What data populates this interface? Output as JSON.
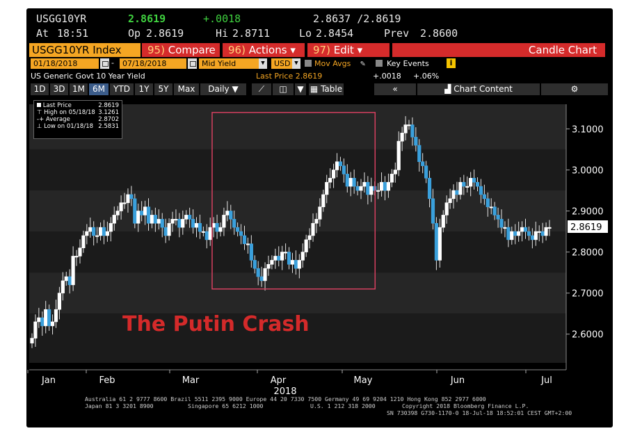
{
  "header": {
    "ticker": "USGG10YR",
    "last": "2.8619",
    "change": "+.0018",
    "bid_ask": "2.8637 /2.8619",
    "time_label": "At",
    "time": "18:51",
    "open_label": "Op",
    "open": "2.8619",
    "high_label": "Hi",
    "high": "2.8711",
    "low_label": "Lo",
    "low": "2.8454",
    "prev_label": "Prev",
    "prev": "2.8600"
  },
  "toolbar": {
    "security": "USGG10YR Index",
    "compare_key": "95)",
    "compare": "Compare",
    "actions_key": "96)",
    "actions": "Actions",
    "edit_key": "97)",
    "edit": "Edit",
    "chart_type": "Candle Chart"
  },
  "settings": {
    "start_date": "01/18/2018",
    "end_date": "07/18/2018",
    "field": "Mid Yield",
    "currency": "USD",
    "mov_avgs": "Mov Avgs",
    "key_events": "Key Events",
    "info": "i"
  },
  "subtitle": {
    "security_name": "US Generic Govt 10 Year Yield",
    "last_price": "Last Price 2.8619",
    "change": "+.0018",
    "pct_change": "+.06%"
  },
  "periods": {
    "items": [
      "1D",
      "3D",
      "1M",
      "6M",
      "YTD",
      "1Y",
      "5Y",
      "Max"
    ],
    "active": "6M",
    "frequency": "Daily",
    "table": "Table",
    "collapse": "«",
    "chart_content": "Chart Content",
    "settings_icon": "gear-icon"
  },
  "legend": {
    "last_price_label": "Last Price",
    "last_price": "2.8619",
    "high_label": "High on 05/18/18",
    "high": "3.1261",
    "average_label": "Average",
    "average": "2.8702",
    "low_label": "Low on 01/18/18",
    "low": "2.5831"
  },
  "annotation": {
    "text": "The Putin Crash",
    "color": "#d42a2a"
  },
  "colors": {
    "candle": "#3aa0dc",
    "candle_outline": "#ffffff",
    "highlight_box": "#d64060",
    "last_price_tag": "#ffffff"
  },
  "chart_data": {
    "type": "candlestick",
    "xlabel": "2018",
    "x_tick_labels": [
      "Jan",
      "Feb",
      "Mar",
      "Apr",
      "May",
      "Jun",
      "Jul"
    ],
    "y_tick_labels": [
      "3.1000",
      "3.0000",
      "2.9000",
      "2.8000",
      "2.7000",
      "2.6000"
    ],
    "ylim": [
      2.53,
      3.16
    ],
    "last_price_tag": "2.8619",
    "highlighted_range": {
      "x": [
        "2018-03-22",
        "2018-05-18"
      ],
      "y": [
        2.71,
        3.14
      ]
    },
    "close_series": [
      2.59,
      2.63,
      2.64,
      2.62,
      2.66,
      2.62,
      2.63,
      2.66,
      2.7,
      2.73,
      2.74,
      2.72,
      2.79,
      2.79,
      2.81,
      2.84,
      2.85,
      2.86,
      2.84,
      2.84,
      2.86,
      2.84,
      2.85,
      2.87,
      2.89,
      2.9,
      2.92,
      2.92,
      2.94,
      2.93,
      2.87,
      2.9,
      2.89,
      2.91,
      2.87,
      2.89,
      2.87,
      2.88,
      2.86,
      2.84,
      2.87,
      2.88,
      2.88,
      2.86,
      2.88,
      2.89,
      2.88,
      2.86,
      2.87,
      2.85,
      2.85,
      2.83,
      2.86,
      2.87,
      2.85,
      2.86,
      2.89,
      2.9,
      2.88,
      2.86,
      2.85,
      2.84,
      2.82,
      2.82,
      2.78,
      2.76,
      2.74,
      2.73,
      2.76,
      2.77,
      2.78,
      2.79,
      2.78,
      2.8,
      2.8,
      2.77,
      2.78,
      2.76,
      2.78,
      2.8,
      2.83,
      2.84,
      2.87,
      2.88,
      2.91,
      2.94,
      2.97,
      2.98,
      3.0,
      3.02,
      3.01,
      2.99,
      2.96,
      2.98,
      2.96,
      2.95,
      2.96,
      2.97,
      2.94,
      2.96,
      2.95,
      2.95,
      2.97,
      2.95,
      2.97,
      2.99,
      3.0,
      3.07,
      3.09,
      3.11,
      3.11,
      3.08,
      3.06,
      3.02,
      3.01,
      2.98,
      2.93,
      2.87,
      2.78,
      2.86,
      2.89,
      2.92,
      2.93,
      2.95,
      2.94,
      2.97,
      2.96,
      2.96,
      2.98,
      2.97,
      2.96,
      2.94,
      2.93,
      2.91,
      2.91,
      2.89,
      2.88,
      2.86,
      2.86,
      2.83,
      2.85,
      2.84,
      2.85,
      2.86,
      2.85,
      2.84,
      2.83,
      2.85,
      2.85,
      2.84,
      2.86,
      2.86
    ]
  },
  "footer": {
    "line1": "Australia 61 2 9777 8600 Brazil 5511 2395 9000 Europe 44 20 7330 7500 Germany 49 69 9204 1210 Hong Kong 852 2977 6000",
    "line2a": "Japan 81 3 3201 8900",
    "line2b": "Singapore 65 6212 1000",
    "line2c": "U.S. 1 212 318 2000",
    "line2d": "Copyright 2018 Bloomberg Finance L.P.",
    "line3": "SN 730398 G730-1170-0 18-Jul-18 18:52:01 CEST GMT+2:00"
  }
}
